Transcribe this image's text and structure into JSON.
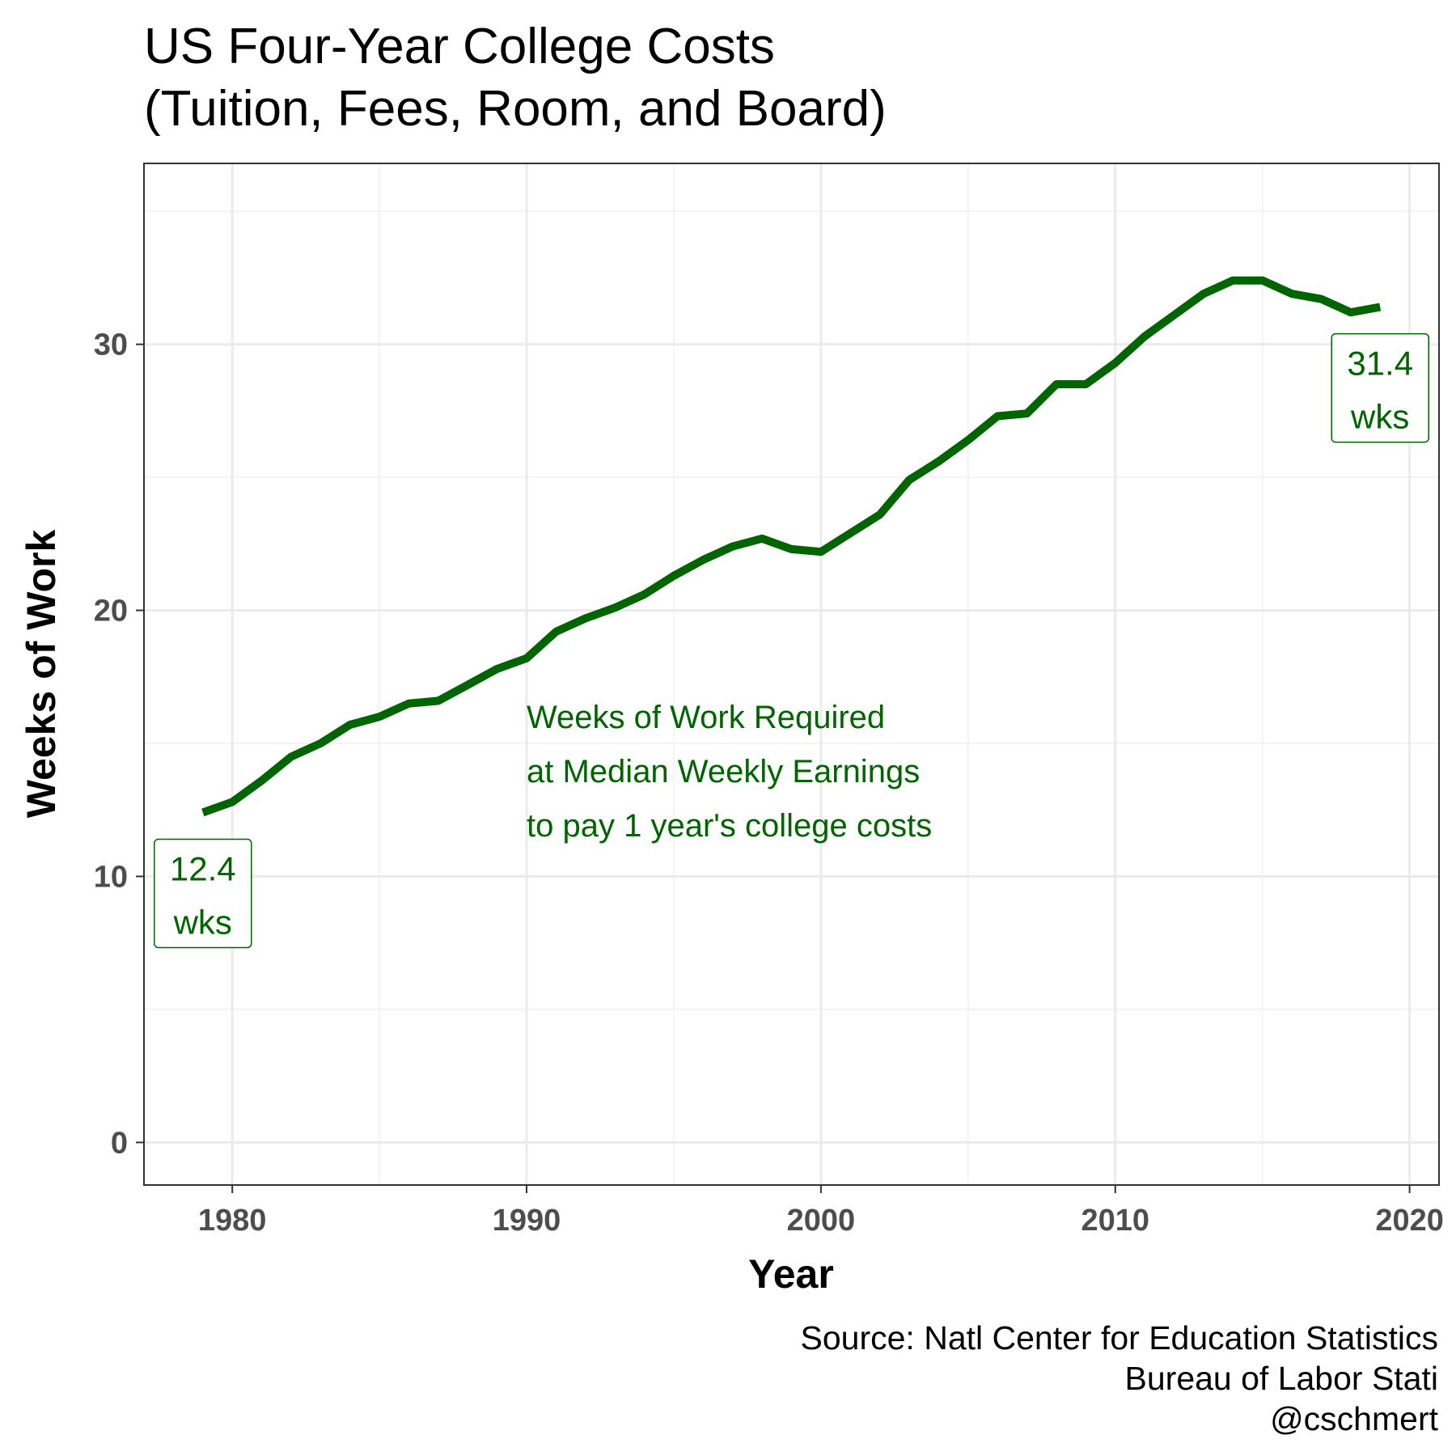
{
  "chart_data": {
    "type": "line",
    "title_lines": [
      "US Four-Year College Costs",
      "(Tuition, Fees, Room, and Board)"
    ],
    "xlabel": "Year",
    "ylabel": "Weeks of Work",
    "xlim": [
      1977,
      2021
    ],
    "ylim": [
      -1.6,
      36.8
    ],
    "x_ticks": [
      1980,
      1990,
      2000,
      2010,
      2020
    ],
    "y_ticks": [
      0,
      10,
      20,
      30
    ],
    "grid": true,
    "series": [
      {
        "color": "#006400",
        "x": [
          1979,
          1980,
          1981,
          1982,
          1983,
          1984,
          1985,
          1986,
          1987,
          1988,
          1989,
          1990,
          1991,
          1992,
          1993,
          1994,
          1995,
          1996,
          1997,
          1998,
          1999,
          2000,
          2001,
          2002,
          2003,
          2004,
          2005,
          2006,
          2007,
          2008,
          2009,
          2010,
          2011,
          2012,
          2013,
          2014,
          2015,
          2016,
          2017,
          2018,
          2019
        ],
        "y": [
          12.4,
          12.8,
          13.6,
          14.5,
          15.0,
          15.7,
          16.0,
          16.5,
          16.6,
          17.2,
          17.8,
          18.2,
          19.2,
          19.7,
          20.1,
          20.6,
          21.3,
          21.9,
          22.4,
          22.7,
          22.3,
          22.2,
          22.9,
          23.6,
          24.9,
          25.6,
          26.4,
          27.3,
          27.4,
          28.5,
          28.5,
          29.3,
          30.3,
          31.1,
          31.9,
          32.4,
          32.4,
          31.9,
          31.7,
          31.2,
          31.4
        ]
      }
    ],
    "annotation_lines": [
      "Weeks of Work Required",
      "at Median Weekly Earnings",
      "to pay 1 year's college costs"
    ],
    "annotation_anchor": {
      "x": 1990,
      "y": 16
    },
    "start_label": {
      "value_text": "12.4",
      "unit_text": "wks"
    },
    "end_label": {
      "value_text": "31.4",
      "unit_text": "wks"
    },
    "caption_lines": [
      "Source: Natl Center for Education Statistics",
      "Bureau of Labor Stati",
      "@cschmert"
    ]
  }
}
